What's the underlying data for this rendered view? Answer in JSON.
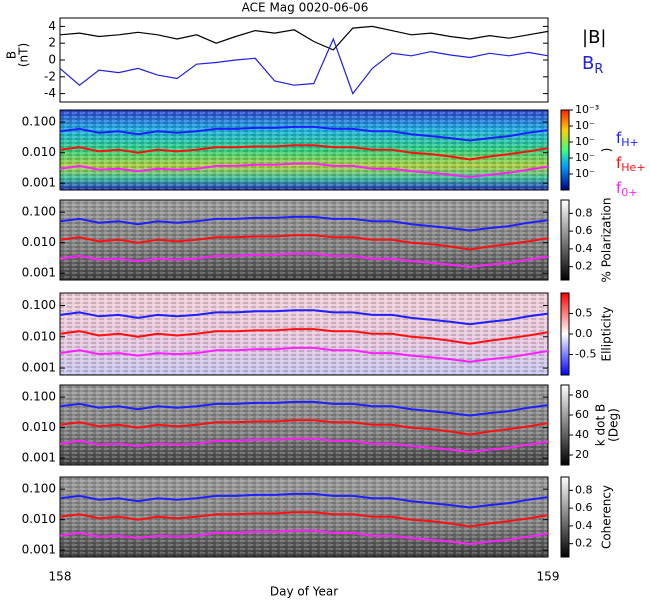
{
  "chart_data": [
    {
      "type": "line",
      "title": "ACE Mag 0020-06-06",
      "ylabel": [
        "B",
        "(nT)"
      ],
      "x": [
        158,
        158.04,
        158.08,
        158.12,
        158.16,
        158.2,
        158.24,
        158.28,
        158.32,
        158.36,
        158.4,
        158.44,
        158.48,
        158.52,
        158.56,
        158.6,
        158.64,
        158.68,
        158.72,
        158.76,
        158.8,
        158.84,
        158.88,
        158.92,
        158.96,
        159
      ],
      "xlim": [
        158,
        159
      ],
      "ylim": [
        -5,
        5
      ],
      "yticks": [
        -4,
        -2,
        0,
        2,
        4
      ],
      "series": [
        {
          "name": "|B|",
          "color": "#000000",
          "values": [
            3.0,
            3.2,
            2.8,
            3.0,
            3.3,
            3.0,
            2.5,
            3.0,
            2.0,
            2.8,
            3.5,
            3.2,
            3.6,
            2.2,
            1.2,
            3.8,
            4.0,
            3.5,
            3.0,
            3.2,
            2.8,
            2.5,
            2.9,
            2.6,
            3.0,
            3.4
          ]
        },
        {
          "name": "B",
          "name_sub": "R",
          "color": "#2020e0",
          "values": [
            -1.0,
            -3.0,
            -1.2,
            -1.5,
            -1.0,
            -1.8,
            -2.2,
            -0.5,
            -0.3,
            0.0,
            0.2,
            -2.5,
            -3.0,
            -2.8,
            2.5,
            -4.0,
            -1.0,
            0.8,
            0.5,
            1.0,
            0.6,
            0.3,
            0.8,
            0.5,
            0.9,
            0.5
          ]
        }
      ]
    },
    {
      "type": "spectrogram",
      "cmap": "jet",
      "cbar_label": ")",
      "clim": [
        -8,
        -3
      ],
      "cticks": [
        {
          "value": -3,
          "label": "10⁻³"
        },
        {
          "value": -4,
          "label": "10⁻"
        },
        {
          "value": -5,
          "label": "10⁻"
        },
        {
          "value": -6,
          "label": "10⁻"
        },
        {
          "value": -7,
          "label": "10⁻"
        }
      ],
      "x": [
        158,
        158.04,
        158.08,
        158.12,
        158.16,
        158.2,
        158.24,
        158.28,
        158.32,
        158.36,
        158.4,
        158.44,
        158.48,
        158.52,
        158.56,
        158.6,
        158.64,
        158.68,
        158.72,
        158.76,
        158.8,
        158.84,
        158.88,
        158.92,
        158.96,
        159
      ],
      "xlim": [
        158,
        159
      ],
      "ylim": [
        0.0006,
        0.25
      ],
      "log_y": true,
      "yticks": [
        {
          "value": 0.001,
          "label": "0.001"
        },
        {
          "value": 0.01,
          "label": "0.010"
        },
        {
          "value": 0.1,
          "label": "0.100"
        }
      ],
      "series": [
        {
          "name": "f",
          "name_sub": "H+",
          "color": "#2020ff",
          "values": [
            0.05,
            0.06,
            0.045,
            0.05,
            0.04,
            0.05,
            0.045,
            0.05,
            0.06,
            0.06,
            0.065,
            0.065,
            0.07,
            0.07,
            0.06,
            0.06,
            0.05,
            0.05,
            0.04,
            0.035,
            0.03,
            0.025,
            0.03,
            0.035,
            0.045,
            0.055
          ]
        },
        {
          "name": "f",
          "name_sub": "He+",
          "color": "#ff1010",
          "values": [
            0.0125,
            0.015,
            0.011,
            0.0125,
            0.01,
            0.0125,
            0.011,
            0.0125,
            0.015,
            0.015,
            0.016,
            0.016,
            0.0175,
            0.0175,
            0.015,
            0.015,
            0.0125,
            0.0125,
            0.01,
            0.009,
            0.0075,
            0.006,
            0.0075,
            0.009,
            0.011,
            0.014
          ]
        },
        {
          "name": "f",
          "name_sub": "0+",
          "color": "#ff20ff",
          "values": [
            0.003,
            0.0037,
            0.0028,
            0.003,
            0.0025,
            0.003,
            0.0028,
            0.003,
            0.0037,
            0.0037,
            0.004,
            0.004,
            0.0044,
            0.0044,
            0.0037,
            0.0037,
            0.003,
            0.003,
            0.0025,
            0.0022,
            0.0019,
            0.0016,
            0.0019,
            0.0022,
            0.0028,
            0.0035
          ]
        }
      ]
    },
    {
      "type": "spectrogram",
      "cmap": "gray",
      "cbar_label": "% Polarization",
      "clim": [
        0.05,
        0.95
      ],
      "cticks": [
        0.2,
        0.4,
        0.6,
        0.8
      ],
      "x": [
        158,
        158.04,
        158.08,
        158.12,
        158.16,
        158.2,
        158.24,
        158.28,
        158.32,
        158.36,
        158.4,
        158.44,
        158.48,
        158.52,
        158.56,
        158.6,
        158.64,
        158.68,
        158.72,
        158.76,
        158.8,
        158.84,
        158.88,
        158.92,
        158.96,
        159
      ],
      "xlim": [
        158,
        159
      ],
      "ylim": [
        0.0006,
        0.25
      ],
      "log_y": true,
      "yticks": [
        {
          "value": 0.001,
          "label": "0.001"
        },
        {
          "value": 0.01,
          "label": "0.010"
        },
        {
          "value": 0.1,
          "label": "0.100"
        }
      ],
      "series": [
        {
          "color": "#2020ff",
          "values": [
            0.05,
            0.06,
            0.045,
            0.05,
            0.04,
            0.05,
            0.045,
            0.05,
            0.06,
            0.06,
            0.065,
            0.065,
            0.07,
            0.07,
            0.06,
            0.06,
            0.05,
            0.05,
            0.04,
            0.035,
            0.03,
            0.025,
            0.03,
            0.035,
            0.045,
            0.055
          ]
        },
        {
          "color": "#ff1010",
          "values": [
            0.0125,
            0.015,
            0.011,
            0.0125,
            0.01,
            0.0125,
            0.011,
            0.0125,
            0.015,
            0.015,
            0.016,
            0.016,
            0.0175,
            0.0175,
            0.015,
            0.015,
            0.0125,
            0.0125,
            0.01,
            0.009,
            0.0075,
            0.006,
            0.0075,
            0.009,
            0.011,
            0.014
          ]
        },
        {
          "color": "#ff20ff",
          "values": [
            0.003,
            0.0037,
            0.0028,
            0.003,
            0.0025,
            0.003,
            0.0028,
            0.003,
            0.0037,
            0.0037,
            0.004,
            0.004,
            0.0044,
            0.0044,
            0.0037,
            0.0037,
            0.003,
            0.003,
            0.0025,
            0.0022,
            0.0019,
            0.0016,
            0.0019,
            0.0022,
            0.0028,
            0.0035
          ]
        }
      ]
    },
    {
      "type": "spectrogram",
      "cmap": "bwr",
      "cbar_label": "Ellipticity",
      "clim": [
        -1,
        1
      ],
      "cticks": [
        -0.5,
        {
          "value": 0,
          "label": "0.0"
        },
        0.5
      ],
      "x": [
        158,
        158.04,
        158.08,
        158.12,
        158.16,
        158.2,
        158.24,
        158.28,
        158.32,
        158.36,
        158.4,
        158.44,
        158.48,
        158.52,
        158.56,
        158.6,
        158.64,
        158.68,
        158.72,
        158.76,
        158.8,
        158.84,
        158.88,
        158.92,
        158.96,
        159
      ],
      "xlim": [
        158,
        159
      ],
      "ylim": [
        0.0006,
        0.25
      ],
      "log_y": true,
      "yticks": [
        {
          "value": 0.001,
          "label": "0.001"
        },
        {
          "value": 0.01,
          "label": "0.010"
        },
        {
          "value": 0.1,
          "label": "0.100"
        }
      ],
      "series": [
        {
          "color": "#2020ff",
          "values": [
            0.05,
            0.06,
            0.045,
            0.05,
            0.04,
            0.05,
            0.045,
            0.05,
            0.06,
            0.06,
            0.065,
            0.065,
            0.07,
            0.07,
            0.06,
            0.06,
            0.05,
            0.05,
            0.04,
            0.035,
            0.03,
            0.025,
            0.03,
            0.035,
            0.045,
            0.055
          ]
        },
        {
          "color": "#ff1010",
          "values": [
            0.0125,
            0.015,
            0.011,
            0.0125,
            0.01,
            0.0125,
            0.011,
            0.0125,
            0.015,
            0.015,
            0.016,
            0.016,
            0.0175,
            0.0175,
            0.015,
            0.015,
            0.0125,
            0.0125,
            0.01,
            0.009,
            0.0075,
            0.006,
            0.0075,
            0.009,
            0.011,
            0.014
          ]
        },
        {
          "color": "#ff20ff",
          "values": [
            0.003,
            0.0037,
            0.0028,
            0.003,
            0.0025,
            0.003,
            0.0028,
            0.003,
            0.0037,
            0.0037,
            0.004,
            0.004,
            0.0044,
            0.0044,
            0.0037,
            0.0037,
            0.003,
            0.003,
            0.0025,
            0.0022,
            0.0019,
            0.0016,
            0.0019,
            0.0022,
            0.0028,
            0.0035
          ]
        }
      ]
    },
    {
      "type": "spectrogram",
      "cmap": "gray",
      "cbar_label": [
        "k dot B",
        "(Deg)"
      ],
      "clim": [
        10,
        90
      ],
      "cticks": [
        20,
        40,
        60,
        80
      ],
      "x": [
        158,
        158.04,
        158.08,
        158.12,
        158.16,
        158.2,
        158.24,
        158.28,
        158.32,
        158.36,
        158.4,
        158.44,
        158.48,
        158.52,
        158.56,
        158.6,
        158.64,
        158.68,
        158.72,
        158.76,
        158.8,
        158.84,
        158.88,
        158.92,
        158.96,
        159
      ],
      "xlim": [
        158,
        159
      ],
      "ylim": [
        0.0006,
        0.25
      ],
      "log_y": true,
      "yticks": [
        {
          "value": 0.001,
          "label": "0.001"
        },
        {
          "value": 0.01,
          "label": "0.010"
        },
        {
          "value": 0.1,
          "label": "0.100"
        }
      ],
      "series": [
        {
          "color": "#2020ff",
          "values": [
            0.05,
            0.06,
            0.045,
            0.05,
            0.04,
            0.05,
            0.045,
            0.05,
            0.06,
            0.06,
            0.065,
            0.065,
            0.07,
            0.07,
            0.06,
            0.06,
            0.05,
            0.05,
            0.04,
            0.035,
            0.03,
            0.025,
            0.03,
            0.035,
            0.045,
            0.055
          ]
        },
        {
          "color": "#ff1010",
          "values": [
            0.0125,
            0.015,
            0.011,
            0.0125,
            0.01,
            0.0125,
            0.011,
            0.0125,
            0.015,
            0.015,
            0.016,
            0.016,
            0.0175,
            0.0175,
            0.015,
            0.015,
            0.0125,
            0.0125,
            0.01,
            0.009,
            0.0075,
            0.006,
            0.0075,
            0.009,
            0.011,
            0.014
          ]
        },
        {
          "color": "#ff20ff",
          "values": [
            0.003,
            0.0037,
            0.0028,
            0.003,
            0.0025,
            0.003,
            0.0028,
            0.003,
            0.0037,
            0.0037,
            0.004,
            0.004,
            0.0044,
            0.0044,
            0.0037,
            0.0037,
            0.003,
            0.003,
            0.0025,
            0.0022,
            0.0019,
            0.0016,
            0.0019,
            0.0022,
            0.0028,
            0.0035
          ]
        }
      ]
    },
    {
      "type": "spectrogram",
      "cmap": "gray",
      "cbar_label": "Coherency",
      "clim": [
        0.05,
        0.95
      ],
      "cticks": [
        0.2,
        0.4,
        0.6,
        0.8
      ],
      "x": [
        158,
        158.04,
        158.08,
        158.12,
        158.16,
        158.2,
        158.24,
        158.28,
        158.32,
        158.36,
        158.4,
        158.44,
        158.48,
        158.52,
        158.56,
        158.6,
        158.64,
        158.68,
        158.72,
        158.76,
        158.8,
        158.84,
        158.88,
        158.92,
        158.96,
        159
      ],
      "xlim": [
        158,
        159
      ],
      "xticks": [
        158,
        159
      ],
      "xlabel": "Day of Year",
      "ylim": [
        0.0006,
        0.25
      ],
      "log_y": true,
      "yticks": [
        {
          "value": 0.001,
          "label": "0.001"
        },
        {
          "value": 0.01,
          "label": "0.010"
        },
        {
          "value": 0.1,
          "label": "0.100"
        }
      ],
      "series": [
        {
          "color": "#2020ff",
          "values": [
            0.05,
            0.06,
            0.045,
            0.05,
            0.04,
            0.05,
            0.045,
            0.05,
            0.06,
            0.06,
            0.065,
            0.065,
            0.07,
            0.07,
            0.06,
            0.06,
            0.05,
            0.05,
            0.04,
            0.035,
            0.03,
            0.025,
            0.03,
            0.035,
            0.045,
            0.055
          ]
        },
        {
          "color": "#ff1010",
          "values": [
            0.0125,
            0.015,
            0.011,
            0.0125,
            0.01,
            0.0125,
            0.011,
            0.0125,
            0.015,
            0.015,
            0.016,
            0.016,
            0.0175,
            0.0175,
            0.015,
            0.015,
            0.0125,
            0.0125,
            0.01,
            0.009,
            0.0075,
            0.006,
            0.0075,
            0.009,
            0.011,
            0.014
          ]
        },
        {
          "color": "#ff20ff",
          "values": [
            0.003,
            0.0037,
            0.0028,
            0.003,
            0.0025,
            0.003,
            0.0028,
            0.003,
            0.0037,
            0.0037,
            0.004,
            0.004,
            0.0044,
            0.0044,
            0.0037,
            0.0037,
            0.003,
            0.003,
            0.0025,
            0.0022,
            0.0019,
            0.0016,
            0.0019,
            0.0022,
            0.0028,
            0.0035
          ]
        }
      ]
    }
  ]
}
